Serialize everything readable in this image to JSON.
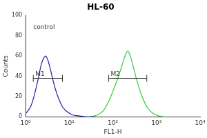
{
  "chart_data": {
    "type": "line",
    "title": "HL-60",
    "x_label": "FL1-H",
    "y_label": "Counts",
    "log": "x",
    "grid": false,
    "xlim": [
      1,
      10000
    ],
    "xticks": [
      {
        "value": 1,
        "label": "10⁰"
      },
      {
        "value": 10,
        "label": "10¹"
      },
      {
        "value": 100,
        "label": "10²"
      },
      {
        "value": 1000,
        "label": "10³"
      },
      {
        "value": 10000,
        "label": "10⁴"
      }
    ],
    "ylim": [
      0,
      100
    ],
    "yticks": [
      0,
      20,
      40,
      60,
      80,
      100
    ],
    "series": [
      {
        "color": "#1f1fa8",
        "x": [
          1,
          1.3,
          1.6,
          2,
          2.3,
          2.6,
          2.9,
          3.3,
          3.8,
          4.5,
          5.5,
          7,
          9,
          12,
          16,
          25,
          40
        ],
        "values": [
          3,
          10,
          22,
          40,
          52,
          58,
          60,
          55,
          45,
          32,
          20,
          10,
          5,
          2,
          1,
          0,
          0
        ]
      },
      {
        "color": "#33cc33",
        "x": [
          30,
          45,
          60,
          80,
          100,
          130,
          160,
          190,
          220,
          260,
          300,
          360,
          450,
          600,
          800,
          1100,
          1500
        ],
        "values": [
          0,
          2,
          6,
          15,
          25,
          38,
          50,
          60,
          65,
          58,
          48,
          35,
          22,
          10,
          4,
          1,
          0
        ]
      }
    ],
    "annotations": [
      {
        "text": "control",
        "x": 1.5,
        "y": 88
      }
    ],
    "gates": [
      {
        "label": "M1",
        "x": [
          1.5,
          7
        ],
        "y": 38
      },
      {
        "label": "M2",
        "x": [
          80,
          600
        ],
        "y": 38
      }
    ]
  }
}
